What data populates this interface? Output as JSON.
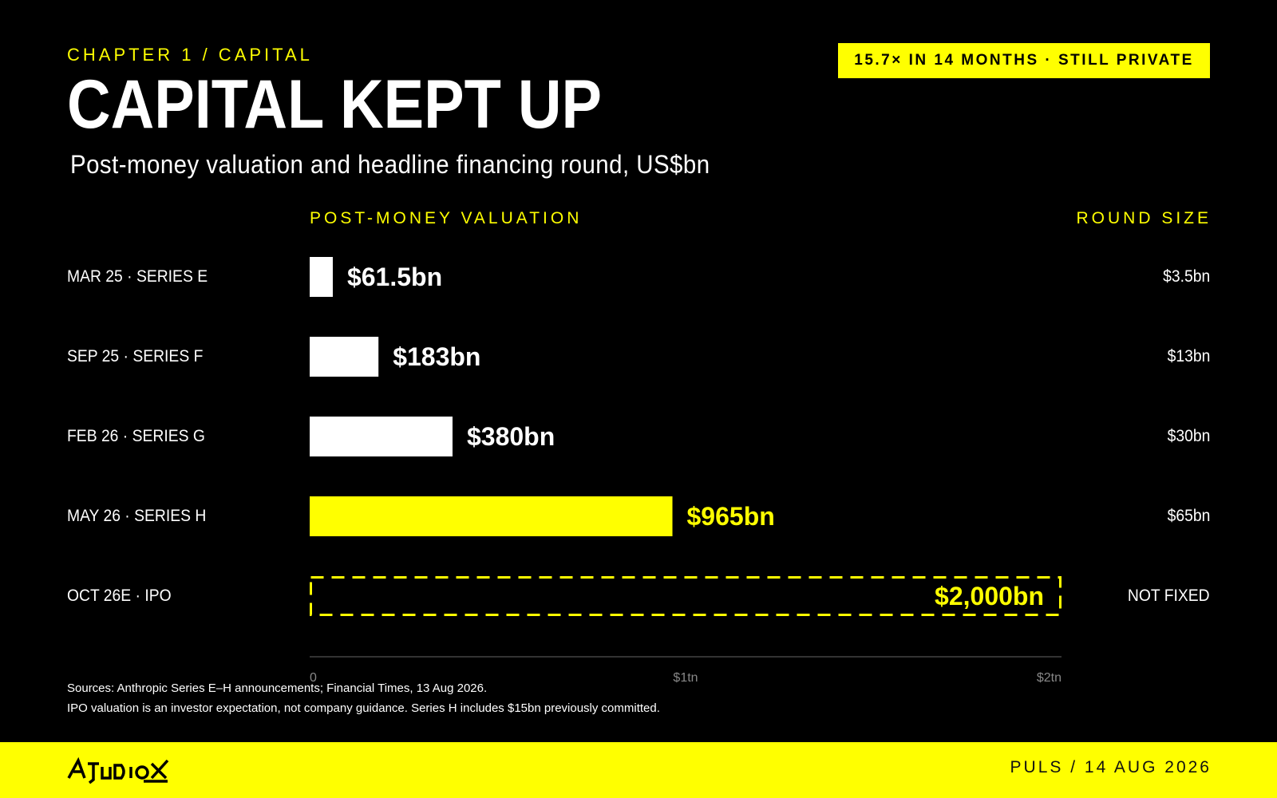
{
  "header": {
    "eyebrow": "CHAPTER 1 / CAPITAL",
    "title": "CAPITAL KEPT UP",
    "subtitle": "Post-money valuation and headline financing round, US$bn",
    "badge": "15.7× IN 14 MONTHS · STILL PRIVATE"
  },
  "columns": {
    "valuation_head": "POST-MONEY VALUATION",
    "round_head": "ROUND SIZE"
  },
  "chart_data": {
    "type": "bar",
    "orientation": "horizontal",
    "title": "CAPITAL KEPT UP",
    "subtitle": "Post-money valuation and headline financing round, US$bn",
    "categories": [
      "MAR 25 · SERIES E",
      "SEP 25 · SERIES F",
      "FEB 26 · SERIES G",
      "MAY 26 · SERIES H",
      "OCT 26E · IPO"
    ],
    "series": [
      {
        "name": "POST-MONEY VALUATION",
        "values": [
          61.5,
          183,
          380,
          965,
          2000
        ],
        "value_labels": [
          "$61.5bn",
          "$183bn",
          "$380bn",
          "$965bn",
          "$2,000bn"
        ],
        "styles": [
          "solid",
          "solid",
          "solid",
          "highlight",
          "dashed-outline"
        ]
      }
    ],
    "round_sizes": [
      "$3.5bn",
      "$13bn",
      "$30bn",
      "$65bn",
      "NOT FIXED"
    ],
    "xlim": [
      0,
      2000
    ],
    "xticks": [
      {
        "value": 0,
        "label": "0"
      },
      {
        "value": 1000,
        "label": "$1tn"
      },
      {
        "value": 2000,
        "label": "$2tn"
      }
    ],
    "grid": false,
    "colors": {
      "bar": "#ffffff",
      "highlight": "#ffff00",
      "axis": "#444444",
      "tick": "#888888"
    }
  },
  "notes": {
    "line1": "Sources: Anthropic Series E–H announcements; Financial Times, 13 Aug 2026.",
    "line2": "IPO valuation is an investor expectation, not company guidance. Series H includes $15bn previously committed."
  },
  "footer": {
    "logo_text": "AIUDIOX",
    "publication": "PULS / 14 AUG 2026"
  },
  "colors": {
    "background": "#000000",
    "accent": "#ffff00",
    "text": "#ffffff"
  }
}
